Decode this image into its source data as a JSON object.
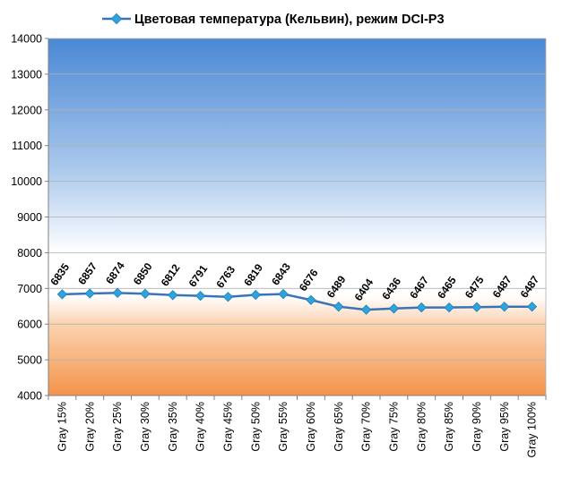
{
  "chart_data": {
    "type": "line",
    "title": "Цветовая температура (Кельвин), режим DCI-P3",
    "xlabel": "",
    "ylabel": "",
    "categories": [
      "Gray 15%",
      "Gray 20%",
      "Gray 25%",
      "Gray 30%",
      "Gray 35%",
      "Gray 40%",
      "Gray 45%",
      "Gray 50%",
      "Gray 55%",
      "Gray 60%",
      "Gray 65%",
      "Gray 70%",
      "Gray 75%",
      "Gray 80%",
      "Gray 85%",
      "Gray 90%",
      "Gray 95%",
      "Gray 100%"
    ],
    "series": [
      {
        "name": "Цветовая температура (Кельвин), режим DCI-P3",
        "values": [
          6835,
          6857,
          6874,
          6850,
          6812,
          6791,
          6763,
          6819,
          6843,
          6676,
          6489,
          6404,
          6436,
          6467,
          6465,
          6475,
          6487,
          6487
        ]
      }
    ],
    "data_labels": [
      "6835",
      "6857",
      "6874",
      "6850",
      "6812",
      "6791",
      "6763",
      "6819",
      "6843",
      "6676",
      "6489",
      "6404",
      "6436",
      "6467",
      "6465",
      "6475",
      "6487",
      "6487"
    ],
    "y_ticks": [
      "4000",
      "5000",
      "6000",
      "7000",
      "8000",
      "9000",
      "10000",
      "11000",
      "12000",
      "13000",
      "14000"
    ],
    "ylim": [
      4000,
      14000
    ],
    "grid": true,
    "legend_position": "top",
    "colors": {
      "line": "#3b73b9",
      "marker": "#2ea3dc",
      "bg_top": "#4a8ad6",
      "bg_white": "#ffffff",
      "bg_bottom": "#f4964a",
      "gridline": "#b0b0b0"
    }
  }
}
